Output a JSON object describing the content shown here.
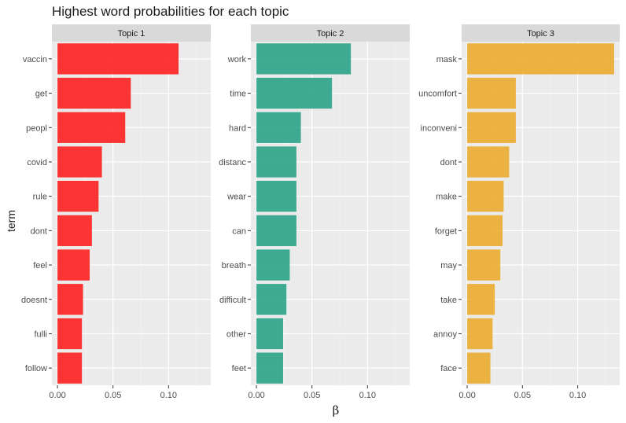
{
  "chart_data": {
    "type": "bar",
    "orientation": "horizontal",
    "title": "Highest word probabilities for each topic",
    "xlabel": "β",
    "ylabel": "term",
    "grid": true,
    "xlim": [
      -0.005,
      0.138
    ],
    "x_ticks": [
      0.0,
      0.05,
      0.1
    ],
    "x_tick_labels": [
      "0.00",
      "0.05",
      "0.10"
    ],
    "panels": [
      {
        "name": "Topic 1",
        "color": "#ff1a1a",
        "terms": [
          "vaccin",
          "get",
          "peopl",
          "covid",
          "rule",
          "dont",
          "feel",
          "doesnt",
          "fulli",
          "follow"
        ],
        "values": [
          0.109,
          0.066,
          0.061,
          0.04,
          0.037,
          0.031,
          0.029,
          0.023,
          0.022,
          0.022
        ]
      },
      {
        "name": "Topic 2",
        "color": "#26a085",
        "terms": [
          "work",
          "time",
          "hard",
          "distanc",
          "wear",
          "can",
          "breath",
          "difficult",
          "other",
          "feet"
        ],
        "values": [
          0.085,
          0.068,
          0.04,
          0.036,
          0.036,
          0.036,
          0.03,
          0.027,
          0.024,
          0.024
        ]
      },
      {
        "name": "Topic 3",
        "color": "#ebaa29",
        "terms": [
          "mask",
          "uncomfort",
          "inconveni",
          "dont",
          "make",
          "forget",
          "may",
          "take",
          "annoy",
          "face"
        ],
        "values": [
          0.133,
          0.044,
          0.044,
          0.038,
          0.033,
          0.032,
          0.03,
          0.025,
          0.023,
          0.021
        ]
      }
    ]
  }
}
